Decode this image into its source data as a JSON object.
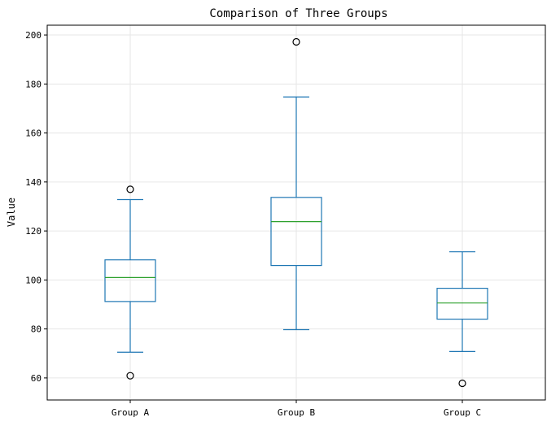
{
  "chart_data": {
    "type": "boxplot",
    "title": "Comparison of Three Groups",
    "xlabel": "",
    "ylabel": "Value",
    "ylim": [
      51,
      204
    ],
    "yticks": [
      60,
      80,
      100,
      120,
      140,
      160,
      180,
      200
    ],
    "grid": true,
    "categories": [
      "Group A",
      "Group B",
      "Group C"
    ],
    "boxes": [
      {
        "name": "Group A",
        "whisker_low": 70.5,
        "q1": 91.2,
        "median": 101.0,
        "q3": 108.2,
        "whisker_high": 132.8,
        "outliers": [
          137.0,
          60.9
        ]
      },
      {
        "name": "Group B",
        "whisker_low": 79.7,
        "q1": 105.9,
        "median": 123.8,
        "q3": 133.7,
        "whisker_high": 174.7,
        "outliers": [
          197.2
        ]
      },
      {
        "name": "Group C",
        "whisker_low": 70.8,
        "q1": 84.0,
        "median": 90.6,
        "q3": 96.6,
        "whisker_high": 111.5,
        "outliers": [
          57.8
        ]
      }
    ],
    "colors": {
      "box": "#1f77b4",
      "median": "#2ca02c",
      "outlier": "#000000",
      "grid": "#e6e6e6"
    }
  }
}
